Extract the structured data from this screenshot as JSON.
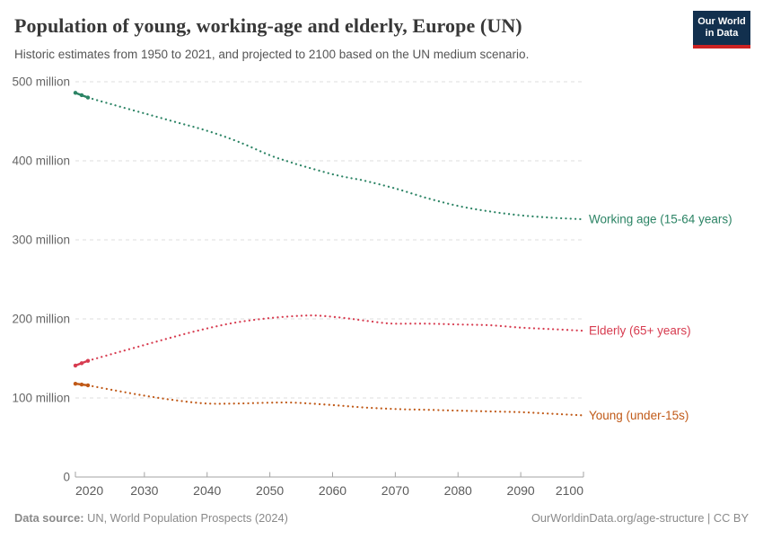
{
  "header": {
    "title": "Population of young, working-age and elderly, Europe (UN)",
    "subtitle": "Historic estimates from 1950 to 2021, and projected to 2100 based on the UN medium scenario.",
    "logo": {
      "line1": "Our World",
      "line2": "in Data",
      "bg_color": "#12304e",
      "stripe_color": "#cc2222"
    }
  },
  "chart_data": {
    "type": "line",
    "title": "Population of young, working-age and elderly, Europe (UN)",
    "unit": "people",
    "grid": true,
    "legend_position": "labels-at-line-ends",
    "x_axis": {
      "min": 2019,
      "max": 2100,
      "ticks": [
        2020,
        2030,
        2040,
        2050,
        2060,
        2070,
        2080,
        2090,
        2100
      ]
    },
    "y_axis": {
      "min": 0,
      "max": 520,
      "unit": "million",
      "ticks": [
        {
          "value": 0,
          "label": "0"
        },
        {
          "value": 100,
          "label": "100 million"
        },
        {
          "value": 200,
          "label": "200 million"
        },
        {
          "value": 300,
          "label": "300 million"
        },
        {
          "value": 400,
          "label": "400 million"
        },
        {
          "value": 500,
          "label": "500 million"
        }
      ]
    },
    "series": [
      {
        "name": "Working age (15-64 years)",
        "slug": "working-age",
        "color": "#2c8465",
        "historic": [
          [
            2019,
            486
          ],
          [
            2020,
            483
          ],
          [
            2021,
            480
          ]
        ],
        "projected": [
          [
            2021,
            480
          ],
          [
            2025,
            471
          ],
          [
            2030,
            460
          ],
          [
            2035,
            449
          ],
          [
            2040,
            438
          ],
          [
            2045,
            424
          ],
          [
            2050,
            407
          ],
          [
            2053,
            399
          ],
          [
            2055,
            394
          ],
          [
            2060,
            383
          ],
          [
            2063,
            378
          ],
          [
            2065,
            375
          ],
          [
            2070,
            365
          ],
          [
            2075,
            353
          ],
          [
            2080,
            343
          ],
          [
            2085,
            336
          ],
          [
            2090,
            331
          ],
          [
            2095,
            328
          ],
          [
            2100,
            326
          ]
        ]
      },
      {
        "name": "Elderly (65+ years)",
        "slug": "elderly",
        "color": "#d73c50",
        "historic": [
          [
            2019,
            141
          ],
          [
            2020,
            144
          ],
          [
            2021,
            147
          ]
        ],
        "projected": [
          [
            2021,
            147
          ],
          [
            2025,
            156
          ],
          [
            2030,
            167
          ],
          [
            2035,
            178
          ],
          [
            2040,
            188
          ],
          [
            2045,
            196
          ],
          [
            2050,
            201
          ],
          [
            2055,
            204
          ],
          [
            2058,
            204
          ],
          [
            2062,
            201
          ],
          [
            2065,
            198
          ],
          [
            2068,
            195
          ],
          [
            2070,
            194
          ],
          [
            2075,
            194
          ],
          [
            2080,
            193
          ],
          [
            2085,
            192
          ],
          [
            2090,
            189
          ],
          [
            2095,
            187
          ],
          [
            2100,
            185
          ]
        ]
      },
      {
        "name": "Young (under-15s)",
        "slug": "young",
        "color": "#c05917",
        "historic": [
          [
            2019,
            118
          ],
          [
            2020,
            117
          ],
          [
            2021,
            116
          ]
        ],
        "projected": [
          [
            2021,
            116
          ],
          [
            2025,
            110
          ],
          [
            2030,
            103
          ],
          [
            2035,
            97
          ],
          [
            2040,
            93
          ],
          [
            2045,
            93
          ],
          [
            2050,
            94
          ],
          [
            2054,
            94
          ],
          [
            2060,
            91
          ],
          [
            2065,
            88
          ],
          [
            2070,
            86
          ],
          [
            2075,
            85
          ],
          [
            2080,
            84
          ],
          [
            2085,
            83
          ],
          [
            2090,
            82
          ],
          [
            2095,
            80
          ],
          [
            2100,
            78
          ]
        ]
      }
    ],
    "style": {
      "grid_color": "#dcdcdc",
      "axis_color": "#a3a3a3",
      "y_label_color": "#666666",
      "x_label_color": "#5c5c5c"
    }
  },
  "footer": {
    "source_label": "Data source:",
    "source_value": " UN, World Population Prospects (2024)",
    "credit": "OurWorldinData.org/age-structure | CC BY"
  }
}
